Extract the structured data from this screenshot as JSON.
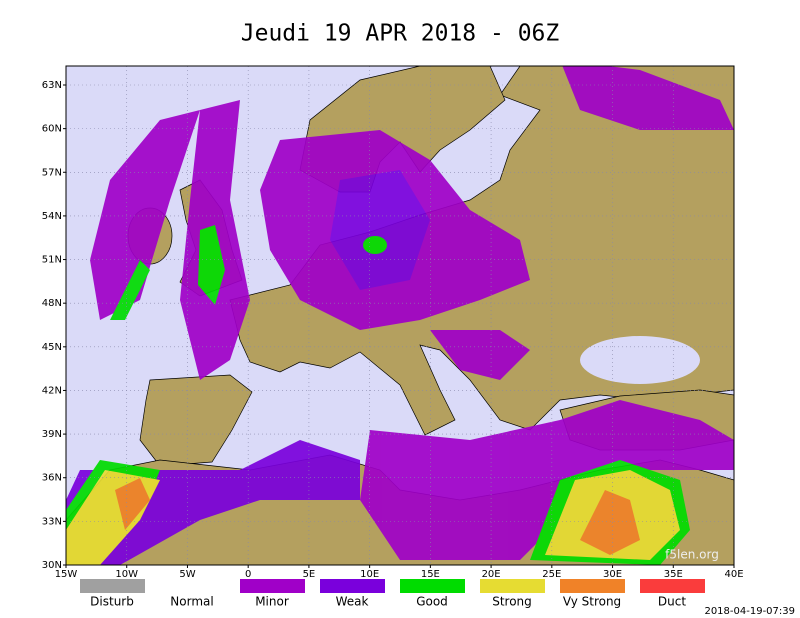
{
  "title": "Jeudi 19 APR 2018 - 06Z",
  "lat_labels": [
    "63N",
    "60N",
    "57N",
    "54N",
    "51N",
    "48N",
    "45N",
    "42N",
    "39N",
    "36N",
    "33N",
    "30N"
  ],
  "lon_labels": [
    "15W",
    "10W",
    "5W",
    "0",
    "5E",
    "10E",
    "15E",
    "20E",
    "25E",
    "30E",
    "35E",
    "40E"
  ],
  "legend": [
    {
      "label": "Disturb",
      "color": "#a0a0a0"
    },
    {
      "label": "Normal"
    },
    {
      "label": "Minor",
      "color": "#a000c8"
    },
    {
      "label": "Weak",
      "color": "#7a00dc"
    },
    {
      "label": "Good",
      "color": "#00dc00"
    },
    {
      "label": "Strong",
      "color": "#e6dc32"
    },
    {
      "label": "Vy Strong",
      "color": "#f08228"
    },
    {
      "label": "Duct",
      "color": "#fa3c3c"
    }
  ],
  "watermark": "f5len.org",
  "timestamp": "2018-04-19-07:39"
}
